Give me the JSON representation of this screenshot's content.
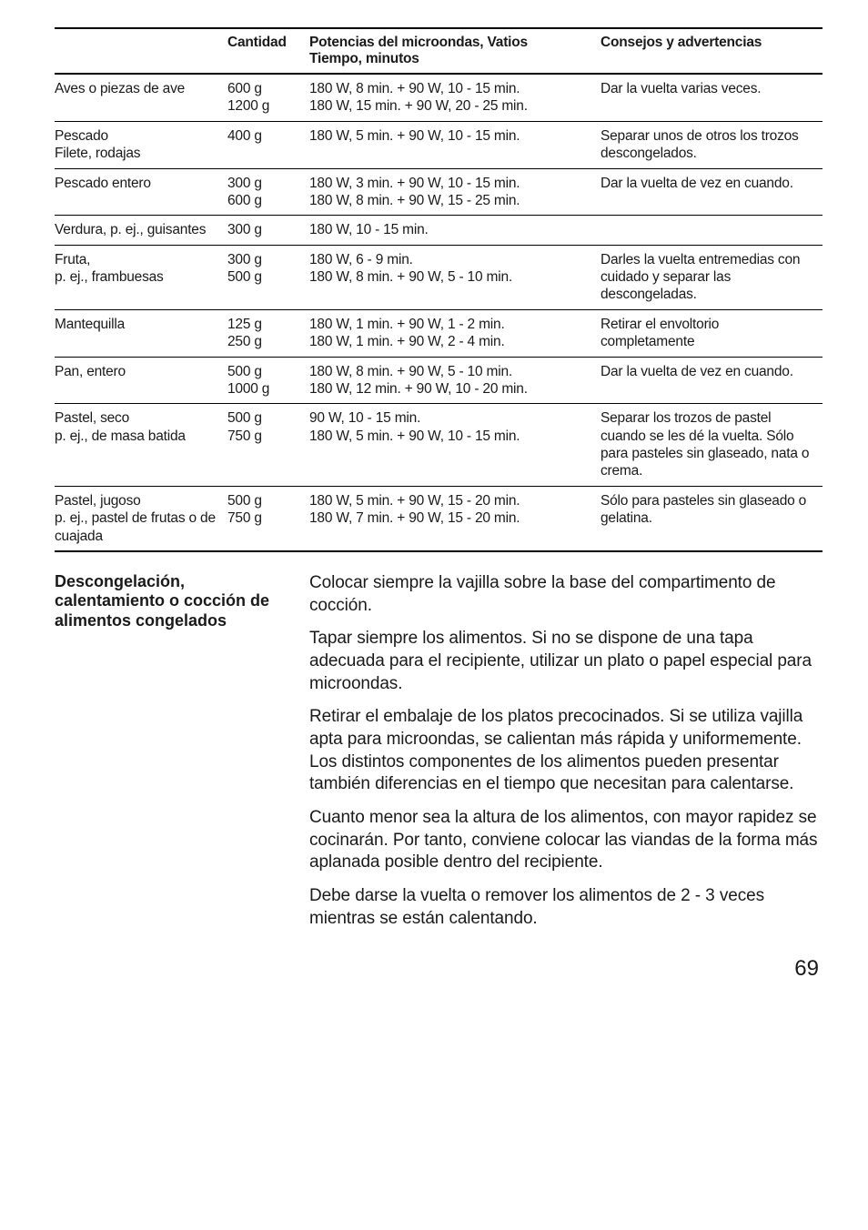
{
  "table": {
    "headers": [
      "",
      "Cantidad",
      "Potencias del microondas, Vatios\nTiempo, minutos",
      "Consejos y advertencias"
    ],
    "rows": [
      {
        "a": "Aves o piezas de ave",
        "b": "600 g\n1200 g",
        "c": "180 W, 8 min. + 90 W, 10 - 15 min.\n180 W, 15 min. + 90 W, 20 - 25 min.",
        "d": "Dar la vuelta varias veces."
      },
      {
        "a": "Pescado\nFilete, rodajas",
        "b": "400 g",
        "c": "180 W, 5 min. + 90 W, 10 - 15 min.",
        "d": "Separar unos de otros los trozos descongelados."
      },
      {
        "a": "Pescado entero",
        "b": "300 g\n600 g",
        "c": "180 W, 3 min. + 90 W, 10 - 15 min.\n180 W, 8 min. + 90 W, 15 - 25 min.",
        "d": "Dar la vuelta de vez en cuando."
      },
      {
        "a": "Verdura, p. ej., guisantes",
        "b": "300 g",
        "c": "180 W, 10 - 15 min.",
        "d": ""
      },
      {
        "a": "Fruta,\np. ej., frambuesas",
        "b": "300 g\n500 g",
        "c": "180 W, 6 - 9 min.\n180 W, 8 min. + 90 W, 5 - 10 min.",
        "d": "Darles la vuelta entremedias con cuidado y separar las descongeladas."
      },
      {
        "a": "Mantequilla",
        "b": "125 g\n250 g",
        "c": "180 W, 1 min. + 90 W, 1 - 2 min.\n180 W, 1 min. + 90 W, 2 - 4 min.",
        "d": "Retirar el envoltorio completamente"
      },
      {
        "a": "Pan, entero",
        "b": "500 g\n1000 g",
        "c": "180 W, 8 min. + 90 W, 5 - 10 min.\n180 W, 12 min. + 90 W, 10 - 20 min.",
        "d": "Dar la vuelta de vez en cuando."
      },
      {
        "a": "Pastel, seco\np. ej., de masa batida",
        "b": "500 g\n750 g",
        "c": "90 W, 10 - 15 min.\n180 W, 5 min. + 90 W, 10 - 15 min.",
        "d": "Separar los trozos de pastel cuando se les dé la vuelta. Sólo para pasteles sin glaseado, nata o crema."
      },
      {
        "a": "Pastel, jugoso\np. ej., pastel de frutas o de cuajada",
        "b": "500 g\n750 g",
        "c": "180 W, 5 min. + 90 W, 15 - 20 min.\n180 W, 7 min. + 90 W, 15 - 20 min.",
        "d": "Sólo para pasteles sin glaseado o gelatina."
      }
    ]
  },
  "section": {
    "heading": "Descongelación, calentamiento o cocción de alimentos congelados",
    "paragraphs": [
      "Colocar siempre la vajilla sobre la base del comparti­mento de cocción.",
      "Tapar siempre los alimentos. Si no se dispone de una tapa adecuada para el recipiente, utilizar un plato o papel especial para microondas.",
      "Retirar el embalaje de los platos precocinados. Si se utiliza vajilla apta para microondas, se calientan más rápida y uniformemente.\nLos distintos componentes de los alimentos pueden presentar también diferencias en el tiempo que necesitan para calentarse.",
      "Cuanto menor sea la altura de los alimentos, con mayor rapidez se cocinarán. Por tanto, conviene colocar las viandas de la forma más aplanada posible dentro del recipiente.",
      "Debe darse la vuelta o remover los alimentos de 2 - 3 veces mientras se están calentando."
    ]
  },
  "page": "69"
}
